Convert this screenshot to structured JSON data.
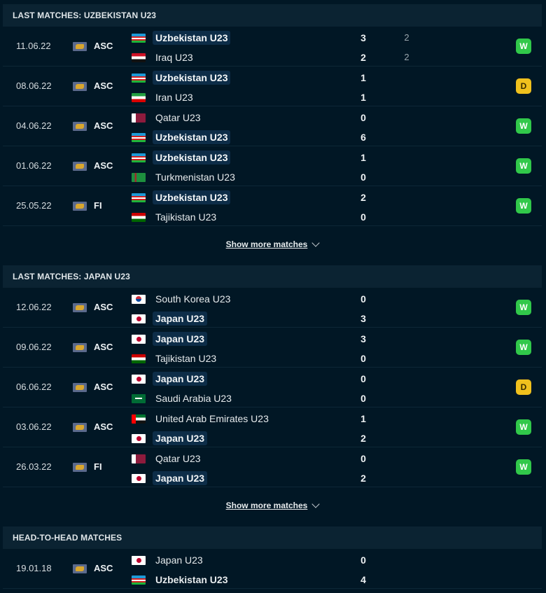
{
  "show_more_label": "Show more matches",
  "sections": [
    {
      "title": "LAST MATCHES: UZBEKISTAN U23",
      "show_more": true,
      "matches": [
        {
          "date": "11.06.22",
          "comp": "ASC",
          "home": {
            "name": "Uzbekistan U23",
            "flag": "uzb",
            "highlight": true,
            "score": "3",
            "pen": "2"
          },
          "away": {
            "name": "Iraq U23",
            "flag": "irq",
            "highlight": false,
            "score": "2",
            "pen": "2"
          },
          "result": "W"
        },
        {
          "date": "08.06.22",
          "comp": "ASC",
          "home": {
            "name": "Uzbekistan U23",
            "flag": "uzb",
            "highlight": true,
            "score": "1"
          },
          "away": {
            "name": "Iran U23",
            "flag": "irn",
            "highlight": false,
            "score": "1"
          },
          "result": "D"
        },
        {
          "date": "04.06.22",
          "comp": "ASC",
          "home": {
            "name": "Qatar U23",
            "flag": "qat",
            "highlight": false,
            "score": "0"
          },
          "away": {
            "name": "Uzbekistan U23",
            "flag": "uzb",
            "highlight": true,
            "bold": true,
            "score": "6"
          },
          "result": "W"
        },
        {
          "date": "01.06.22",
          "comp": "ASC",
          "home": {
            "name": "Uzbekistan U23",
            "flag": "uzb",
            "highlight": true,
            "bold": true,
            "score": "1"
          },
          "away": {
            "name": "Turkmenistan U23",
            "flag": "tkm",
            "highlight": false,
            "score": "0"
          },
          "result": "W"
        },
        {
          "date": "25.05.22",
          "comp": "FI",
          "home": {
            "name": "Uzbekistan U23",
            "flag": "uzb",
            "highlight": true,
            "bold": true,
            "score": "2"
          },
          "away": {
            "name": "Tajikistan U23",
            "flag": "tjk",
            "highlight": false,
            "score": "0"
          },
          "result": "W"
        }
      ]
    },
    {
      "title": "LAST MATCHES: JAPAN U23",
      "show_more": true,
      "matches": [
        {
          "date": "12.06.22",
          "comp": "ASC",
          "home": {
            "name": "South Korea U23",
            "flag": "kor",
            "highlight": false,
            "score": "0"
          },
          "away": {
            "name": "Japan U23",
            "flag": "jpn",
            "highlight": true,
            "bold": true,
            "score": "3"
          },
          "result": "W"
        },
        {
          "date": "09.06.22",
          "comp": "ASC",
          "home": {
            "name": "Japan U23",
            "flag": "jpn",
            "highlight": true,
            "bold": true,
            "score": "3"
          },
          "away": {
            "name": "Tajikistan U23",
            "flag": "tjk",
            "highlight": false,
            "score": "0"
          },
          "result": "W"
        },
        {
          "date": "06.06.22",
          "comp": "ASC",
          "home": {
            "name": "Japan U23",
            "flag": "jpn",
            "highlight": true,
            "score": "0"
          },
          "away": {
            "name": "Saudi Arabia U23",
            "flag": "ksa",
            "highlight": false,
            "score": "0"
          },
          "result": "D"
        },
        {
          "date": "03.06.22",
          "comp": "ASC",
          "home": {
            "name": "United Arab Emirates U23",
            "flag": "uae",
            "highlight": false,
            "score": "1"
          },
          "away": {
            "name": "Japan U23",
            "flag": "jpn",
            "highlight": true,
            "bold": true,
            "score": "2"
          },
          "result": "W"
        },
        {
          "date": "26.03.22",
          "comp": "FI",
          "home": {
            "name": "Qatar U23",
            "flag": "qat",
            "highlight": false,
            "score": "0"
          },
          "away": {
            "name": "Japan U23",
            "flag": "jpn",
            "highlight": true,
            "bold": true,
            "score": "2"
          },
          "result": "W"
        }
      ]
    },
    {
      "title": "HEAD-TO-HEAD MATCHES",
      "show_more": false,
      "matches": [
        {
          "date": "19.01.18",
          "comp": "ASC",
          "home": {
            "name": "Japan U23",
            "flag": "jpn",
            "highlight": false,
            "score": "0"
          },
          "away": {
            "name": "Uzbekistan U23",
            "flag": "uzb",
            "highlight": false,
            "bold": true,
            "score": "4"
          },
          "result": ""
        }
      ]
    }
  ]
}
